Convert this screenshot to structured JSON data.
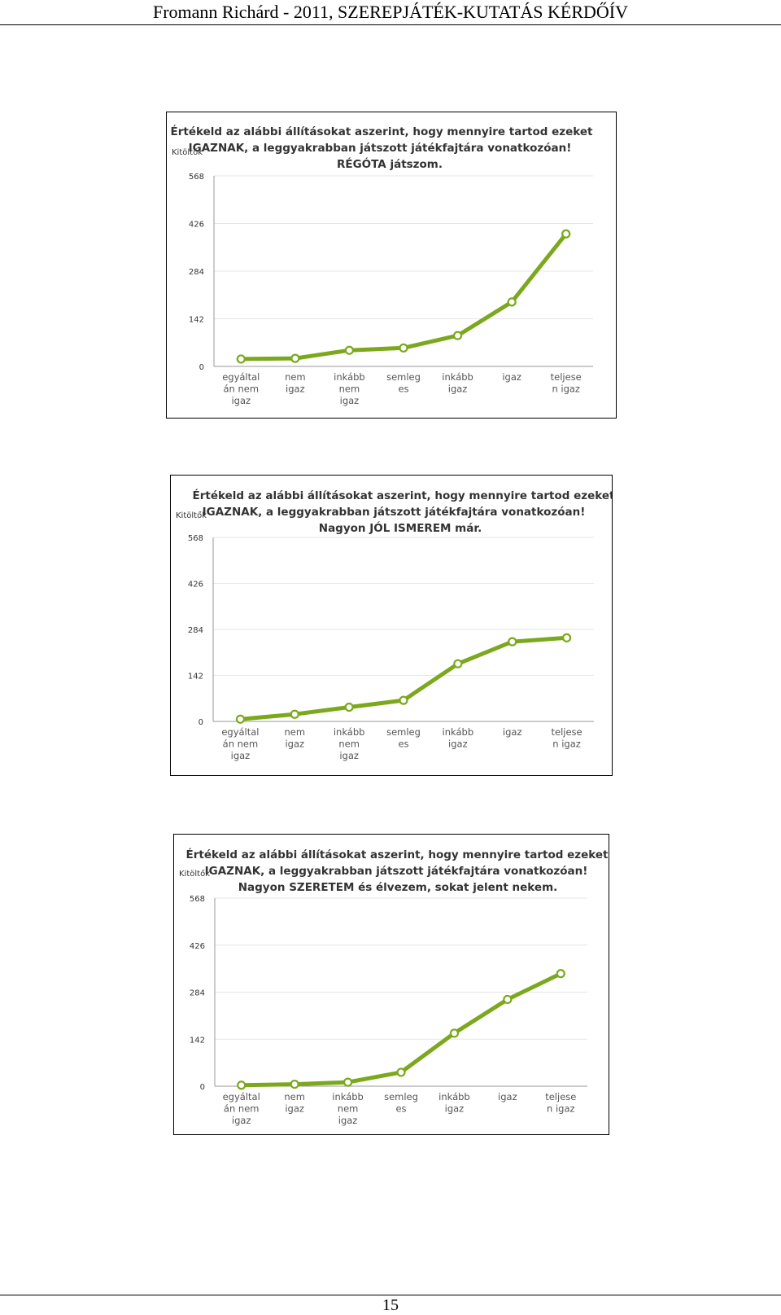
{
  "header": {
    "text": "Fromann Richárd - 2011, SZEREPJÁTÉK-KUTATÁS KÉRDŐÍV"
  },
  "footer": {
    "page_number": "15"
  },
  "colors": {
    "line": "#7ba81c",
    "marker_fill": "#ffffff",
    "grid": "#e6e6e6",
    "axis": "#9a9a9a"
  },
  "chart_data": [
    {
      "type": "line",
      "title": [
        "Értékeld az alábbi állításokat aszerint, hogy mennyire tartod ezeket",
        "IGAZNAK, a leggyakrabban játszott játékfajtára vonatkozóan!",
        "RÉGÓTA játszom."
      ],
      "ylabel": "Kitöltők",
      "ylim": [
        0,
        568
      ],
      "yticks": [
        "568",
        "426",
        "284",
        "142",
        "0"
      ],
      "categories": [
        [
          "egyáltal",
          "án nem",
          "igaz"
        ],
        [
          "nem",
          "igaz"
        ],
        [
          "inkább",
          "nem",
          "igaz"
        ],
        [
          "semleg",
          "es"
        ],
        [
          "inkább",
          "igaz"
        ],
        [
          "igaz"
        ],
        [
          "teljese",
          "n igaz"
        ]
      ],
      "values": [
        22,
        24,
        48,
        55,
        92,
        192,
        395
      ],
      "grid": true,
      "legend": "none"
    },
    {
      "type": "line",
      "title": [
        "Értékeld az alábbi állításokat aszerint, hogy mennyire tartod ezeket",
        "IGAZNAK, a leggyakrabban játszott játékfajtára vonatkozóan!",
        "Nagyon JÓL ISMEREM már."
      ],
      "ylabel": "Kitöltők",
      "ylim": [
        0,
        568
      ],
      "yticks": [
        "568",
        "426",
        "284",
        "142",
        "0"
      ],
      "categories": [
        [
          "egyáltal",
          "án nem",
          "igaz"
        ],
        [
          "nem",
          "igaz"
        ],
        [
          "inkább",
          "nem",
          "igaz"
        ],
        [
          "semleg",
          "es"
        ],
        [
          "inkább",
          "igaz"
        ],
        [
          "igaz"
        ],
        [
          "teljese",
          "n igaz"
        ]
      ],
      "values": [
        7,
        22,
        44,
        65,
        178,
        246,
        258
      ],
      "grid": true,
      "legend": "none"
    },
    {
      "type": "line",
      "title": [
        "Értékeld az alábbi állításokat aszerint, hogy mennyire tartod ezeket",
        "IGAZNAK, a leggyakrabban játszott játékfajtára vonatkozóan!",
        "Nagyon SZERETEM és élvezem, sokat jelent nekem."
      ],
      "ylabel": "Kitöltők",
      "ylim": [
        0,
        568
      ],
      "yticks": [
        "568",
        "426",
        "284",
        "142",
        "0"
      ],
      "categories": [
        [
          "egyáltal",
          "án nem",
          "igaz"
        ],
        [
          "nem",
          "igaz"
        ],
        [
          "inkább",
          "nem",
          "igaz"
        ],
        [
          "semleg",
          "es"
        ],
        [
          "inkább",
          "igaz"
        ],
        [
          "igaz"
        ],
        [
          "teljese",
          "n igaz"
        ]
      ],
      "values": [
        3,
        6,
        12,
        42,
        160,
        262,
        340
      ],
      "grid": true,
      "legend": "none"
    }
  ]
}
